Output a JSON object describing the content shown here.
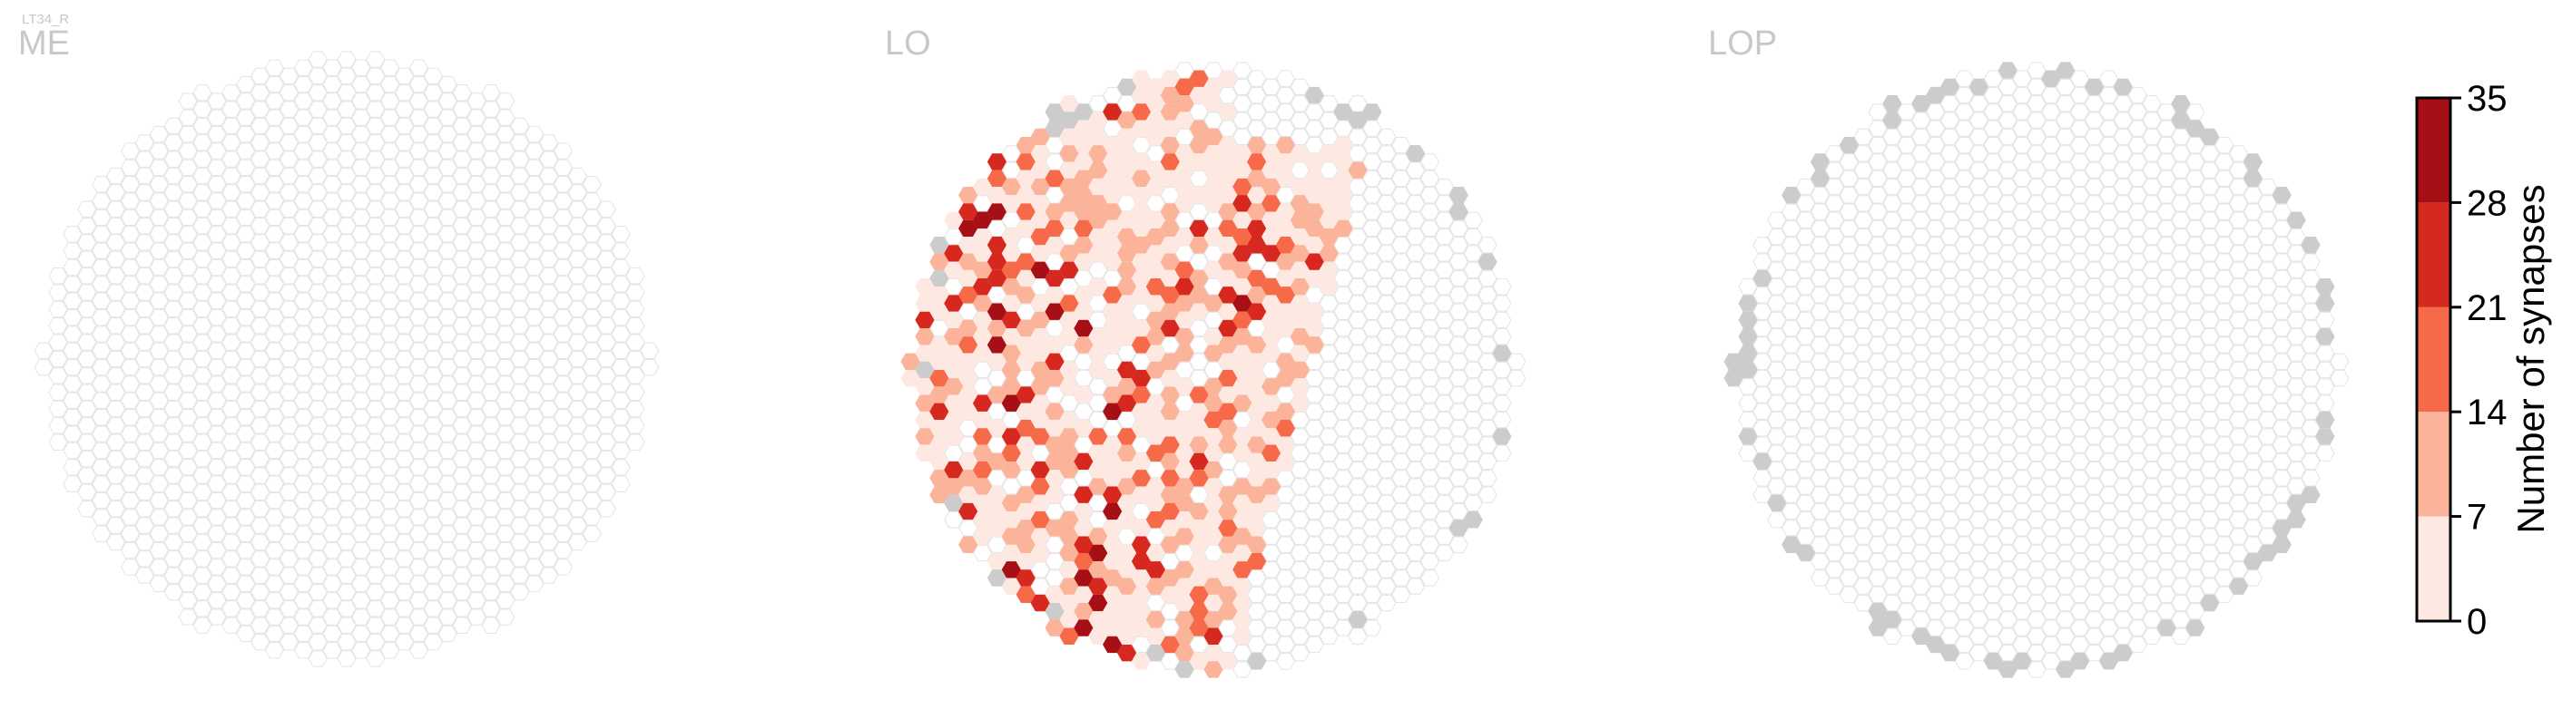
{
  "figure": {
    "cell_type_label": "LT34_R"
  },
  "chart_data": [
    {
      "type": "heatmap",
      "subtype": "hexagonal-column-map",
      "panel_label": "ME",
      "data_note": "no columns with synapses; all hexes empty/outline",
      "cells_with_synapses": [],
      "gray_cells": "none"
    },
    {
      "type": "heatmap",
      "subtype": "hexagonal-column-map",
      "panel_label": "LO",
      "value_bins_present": [
        "0-7",
        "7-14",
        "14-21",
        "21-28",
        "28-35"
      ],
      "data_note": "colored hexes concentrated on left/lower-left half of the eye; gray hexes on periphery (columns outside the neuropil coverage)",
      "sample_bin_counts_estimate": {
        "0-7": 150,
        "7-14": 90,
        "14-21": 45,
        "21-28": 35,
        "28-35": 6
      }
    },
    {
      "type": "heatmap",
      "subtype": "hexagonal-column-map",
      "panel_label": "LOP",
      "data_note": "no synapses; ring of gray hexes around the periphery",
      "cells_with_synapses": []
    }
  ],
  "colorbar": {
    "label": "Number of synapses",
    "ticks": [
      "0",
      "7",
      "14",
      "21",
      "28",
      "35"
    ],
    "range": [
      0,
      35
    ],
    "colors": [
      "#fde9e1",
      "#fbb39a",
      "#f66a4a",
      "#d7281f",
      "#a50f15"
    ],
    "gray_color": "#cccccc",
    "empty_outline_color": "#e6e6e6"
  }
}
